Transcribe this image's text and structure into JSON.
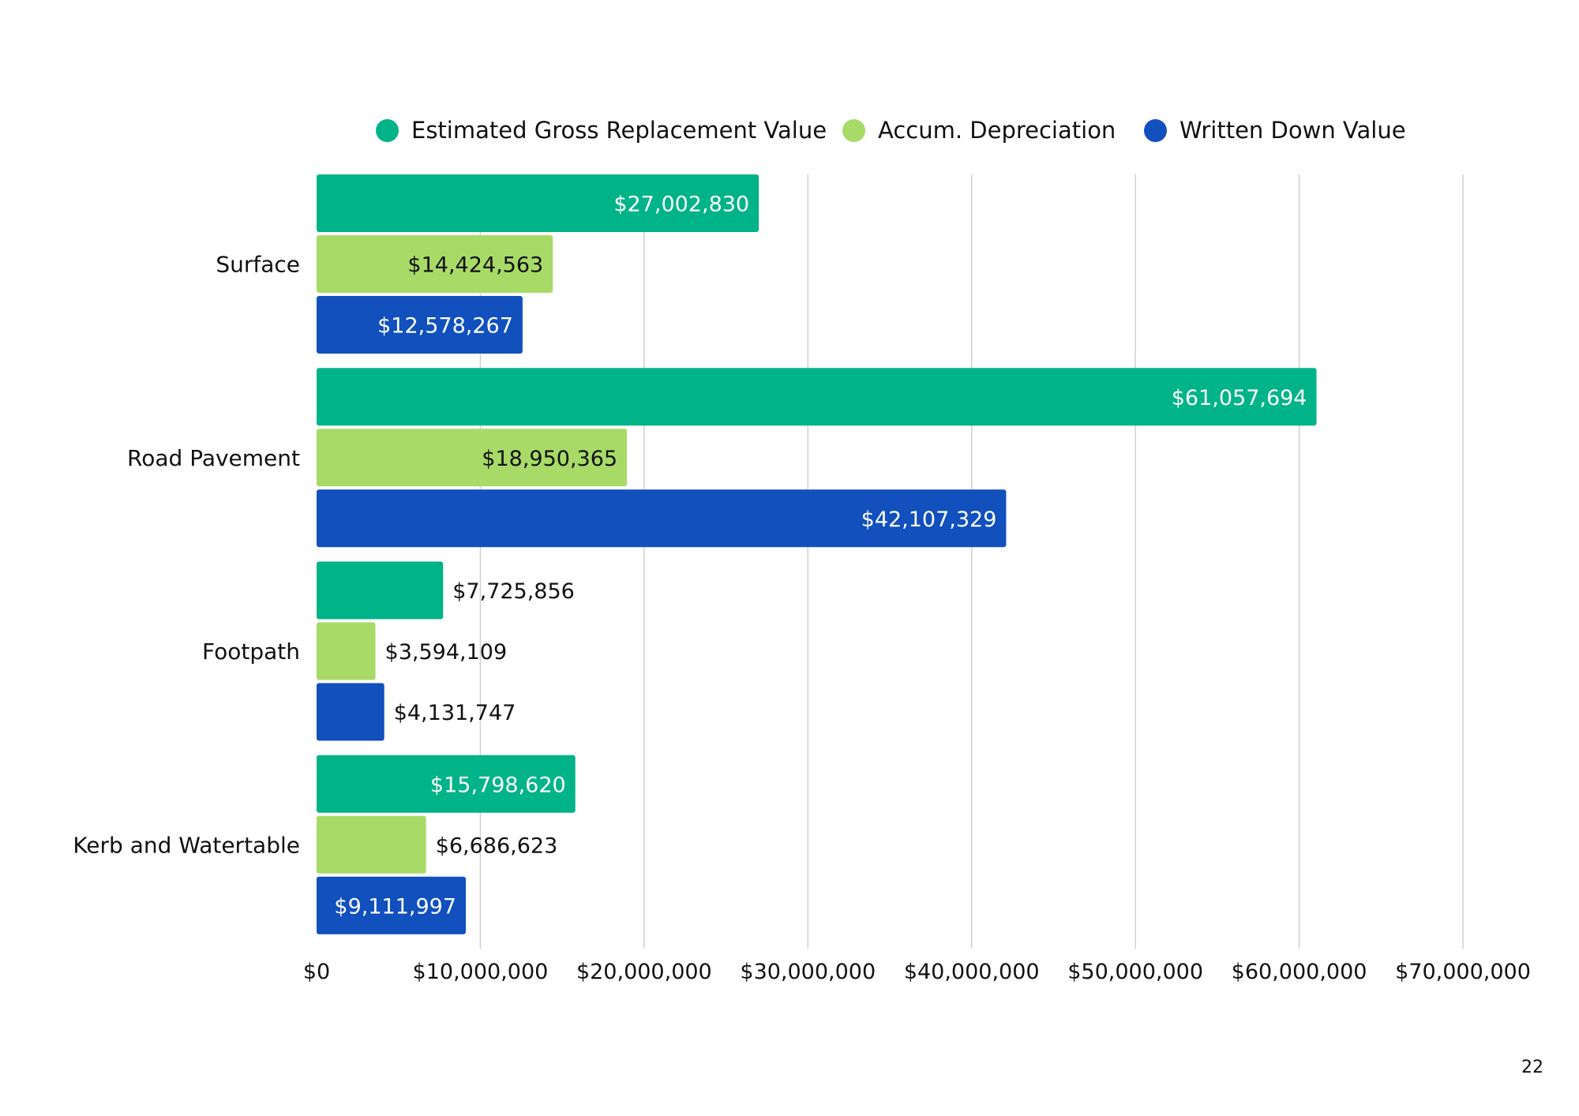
{
  "chart_data": {
    "type": "bar",
    "orientation": "horizontal",
    "title": "",
    "xlabel": "",
    "ylabel": "",
    "categories": [
      "Surface",
      "Road Pavement",
      "Footpath",
      "Kerb and Watertable"
    ],
    "series": [
      {
        "name": "Estimated Gross Replacement Value",
        "color": "#00b388",
        "values": [
          27002830,
          61057694,
          7725856,
          15798620
        ],
        "labels": [
          "$27,002,830",
          "$61,057,694",
          "$7,725,856",
          "$15,798,620"
        ]
      },
      {
        "name": "Accum. Depreciation",
        "color": "#a8da68",
        "values": [
          14424563,
          18950365,
          3594109,
          6686623
        ],
        "labels": [
          "$14,424,563",
          "$18,950,365",
          "$3,594,109",
          "$6,686,623"
        ]
      },
      {
        "name": "Written Down Value",
        "color": "#1150bd",
        "values": [
          12578267,
          42107329,
          4131747,
          9111997
        ],
        "labels": [
          "$12,578,267",
          "$42,107,329",
          "$4,131,747",
          "$9,111,997"
        ]
      }
    ],
    "xlim": [
      0,
      70000000
    ],
    "x_ticks": [
      0,
      10000000,
      20000000,
      30000000,
      40000000,
      50000000,
      60000000,
      70000000
    ],
    "x_tick_labels": [
      "$0",
      "$10,000,000",
      "$20,000,000",
      "$30,000,000",
      "$40,000,000",
      "$50,000,000",
      "$60,000,000",
      "$70,000,000"
    ],
    "grid": true,
    "legend_position": "top"
  },
  "page_number": "22",
  "colors": {
    "grid": "#d0d0d0",
    "text": "#111111",
    "inside_label_light": "#ffffff"
  }
}
